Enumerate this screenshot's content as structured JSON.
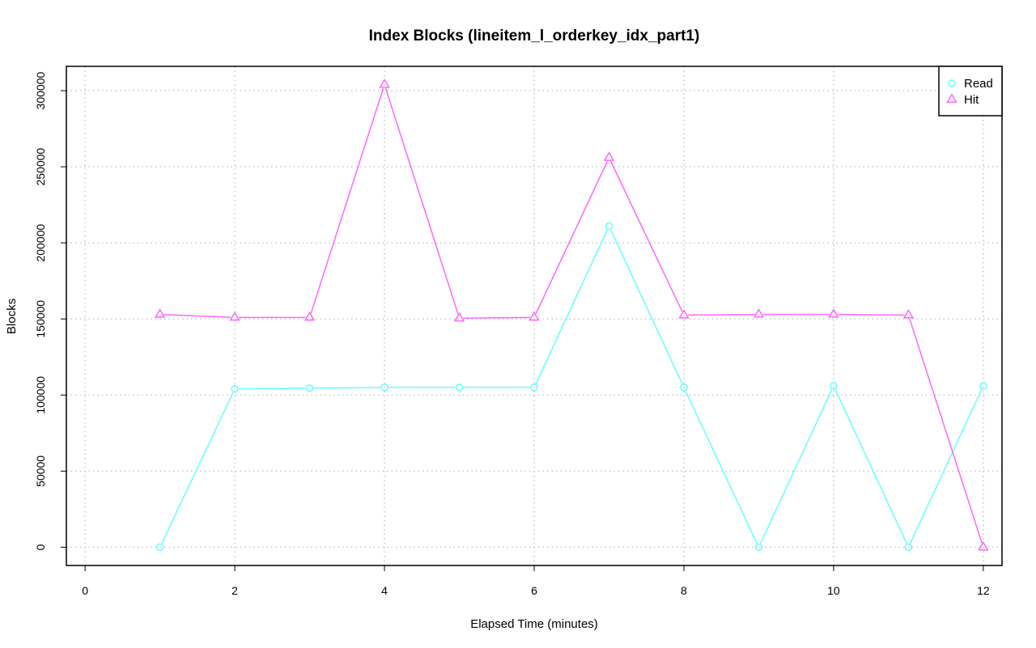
{
  "chart_data": {
    "type": "line",
    "title": "Index Blocks (lineitem_l_orderkey_idx_part1)",
    "xlabel": "Elapsed Time (minutes)",
    "ylabel": "Blocks",
    "xlim": [
      -0.25,
      12.25
    ],
    "ylim": [
      -12000,
      316000
    ],
    "x_ticks": [
      0,
      2,
      4,
      6,
      8,
      10,
      12
    ],
    "x_tick_labels": [
      "0",
      "2",
      "4",
      "6",
      "8",
      "10",
      "12"
    ],
    "y_ticks": [
      0,
      50000,
      100000,
      150000,
      200000,
      250000,
      300000
    ],
    "y_tick_labels": [
      "0",
      "50000",
      "100000",
      "150000",
      "200000",
      "250000",
      "300000"
    ],
    "grid": true,
    "legend_position": "top-right",
    "x": [
      1,
      2,
      3,
      4,
      5,
      6,
      7,
      8,
      9,
      10,
      11,
      12
    ],
    "series": [
      {
        "name": "Read",
        "marker": "circle",
        "color": "#66ffff",
        "values": [
          0,
          104000,
          104500,
          105000,
          105000,
          105000,
          211000,
          105000,
          0,
          106000,
          0,
          106000
        ]
      },
      {
        "name": "Hit",
        "marker": "triangle",
        "color": "#ff66ff",
        "values": [
          153000,
          151000,
          151000,
          304000,
          150500,
          151000,
          256000,
          152500,
          153000,
          153000,
          152500,
          0
        ]
      }
    ]
  }
}
